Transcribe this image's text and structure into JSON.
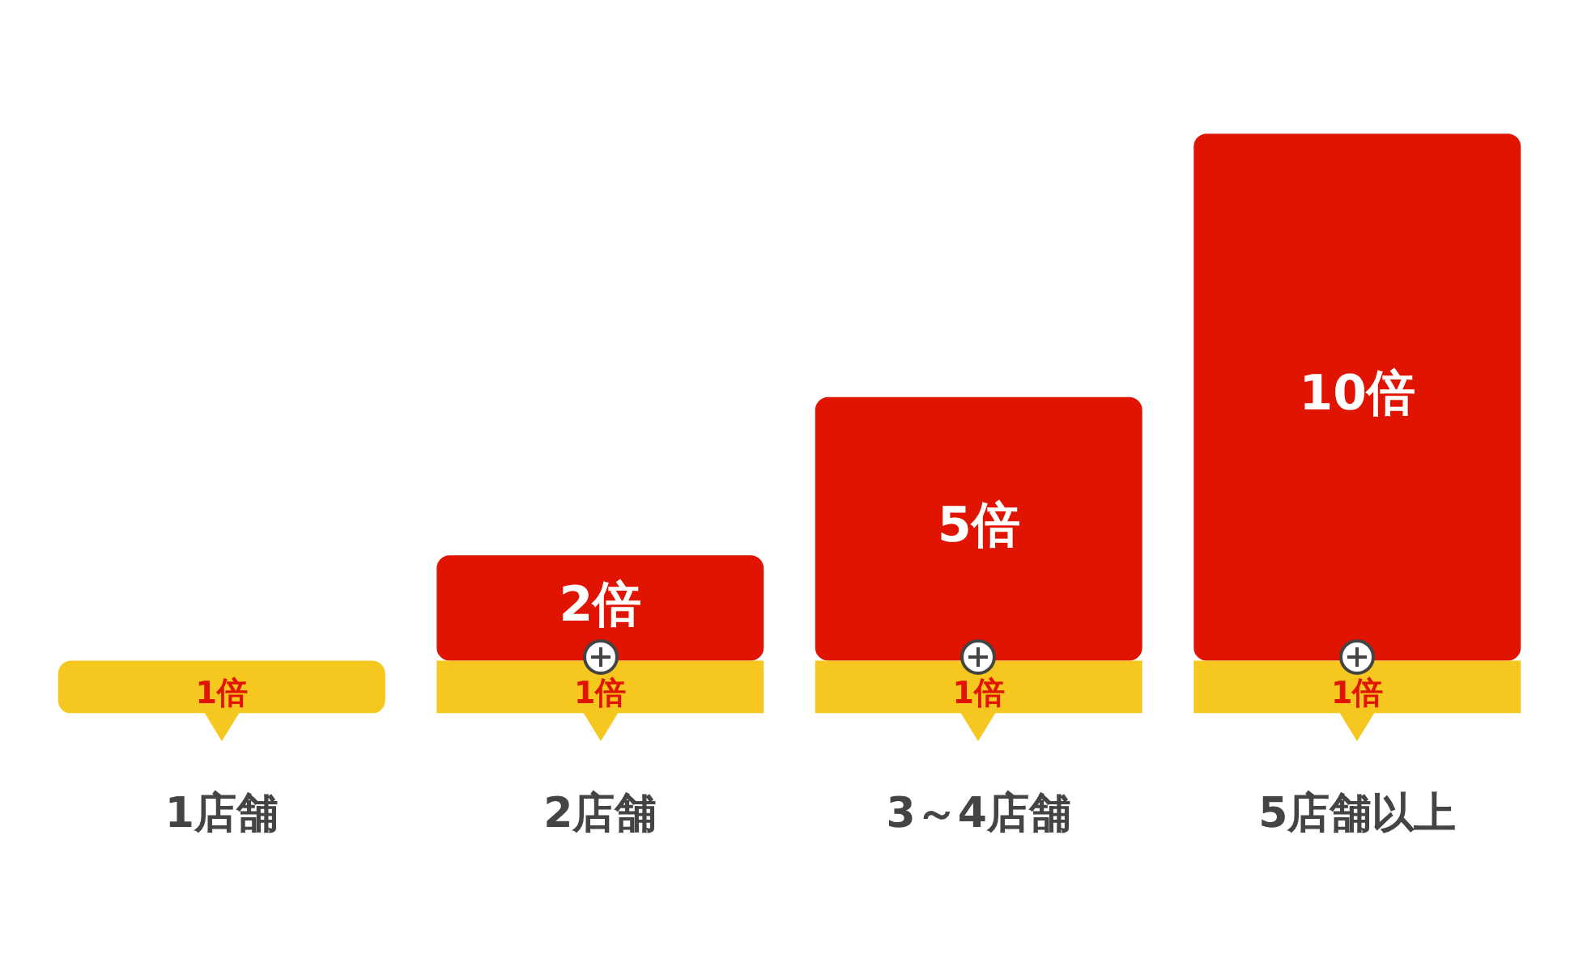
{
  "chart_data": {
    "type": "bar",
    "stacked": true,
    "categories": [
      "1店舗",
      "2店舗",
      "3～4店舗",
      "5店舗以上"
    ],
    "series": [
      {
        "color": "#f5c71f",
        "values": [
          1,
          1,
          1,
          1
        ],
        "value_labels": [
          "1倍",
          "1倍",
          "1倍",
          "1倍"
        ]
      },
      {
        "color": "#e01400",
        "values": [
          null,
          2,
          5,
          10
        ],
        "value_labels": [
          null,
          "2倍",
          "5倍",
          "10倍"
        ]
      }
    ],
    "tick_labels": "x",
    "grid": false,
    "legend": false
  }
}
